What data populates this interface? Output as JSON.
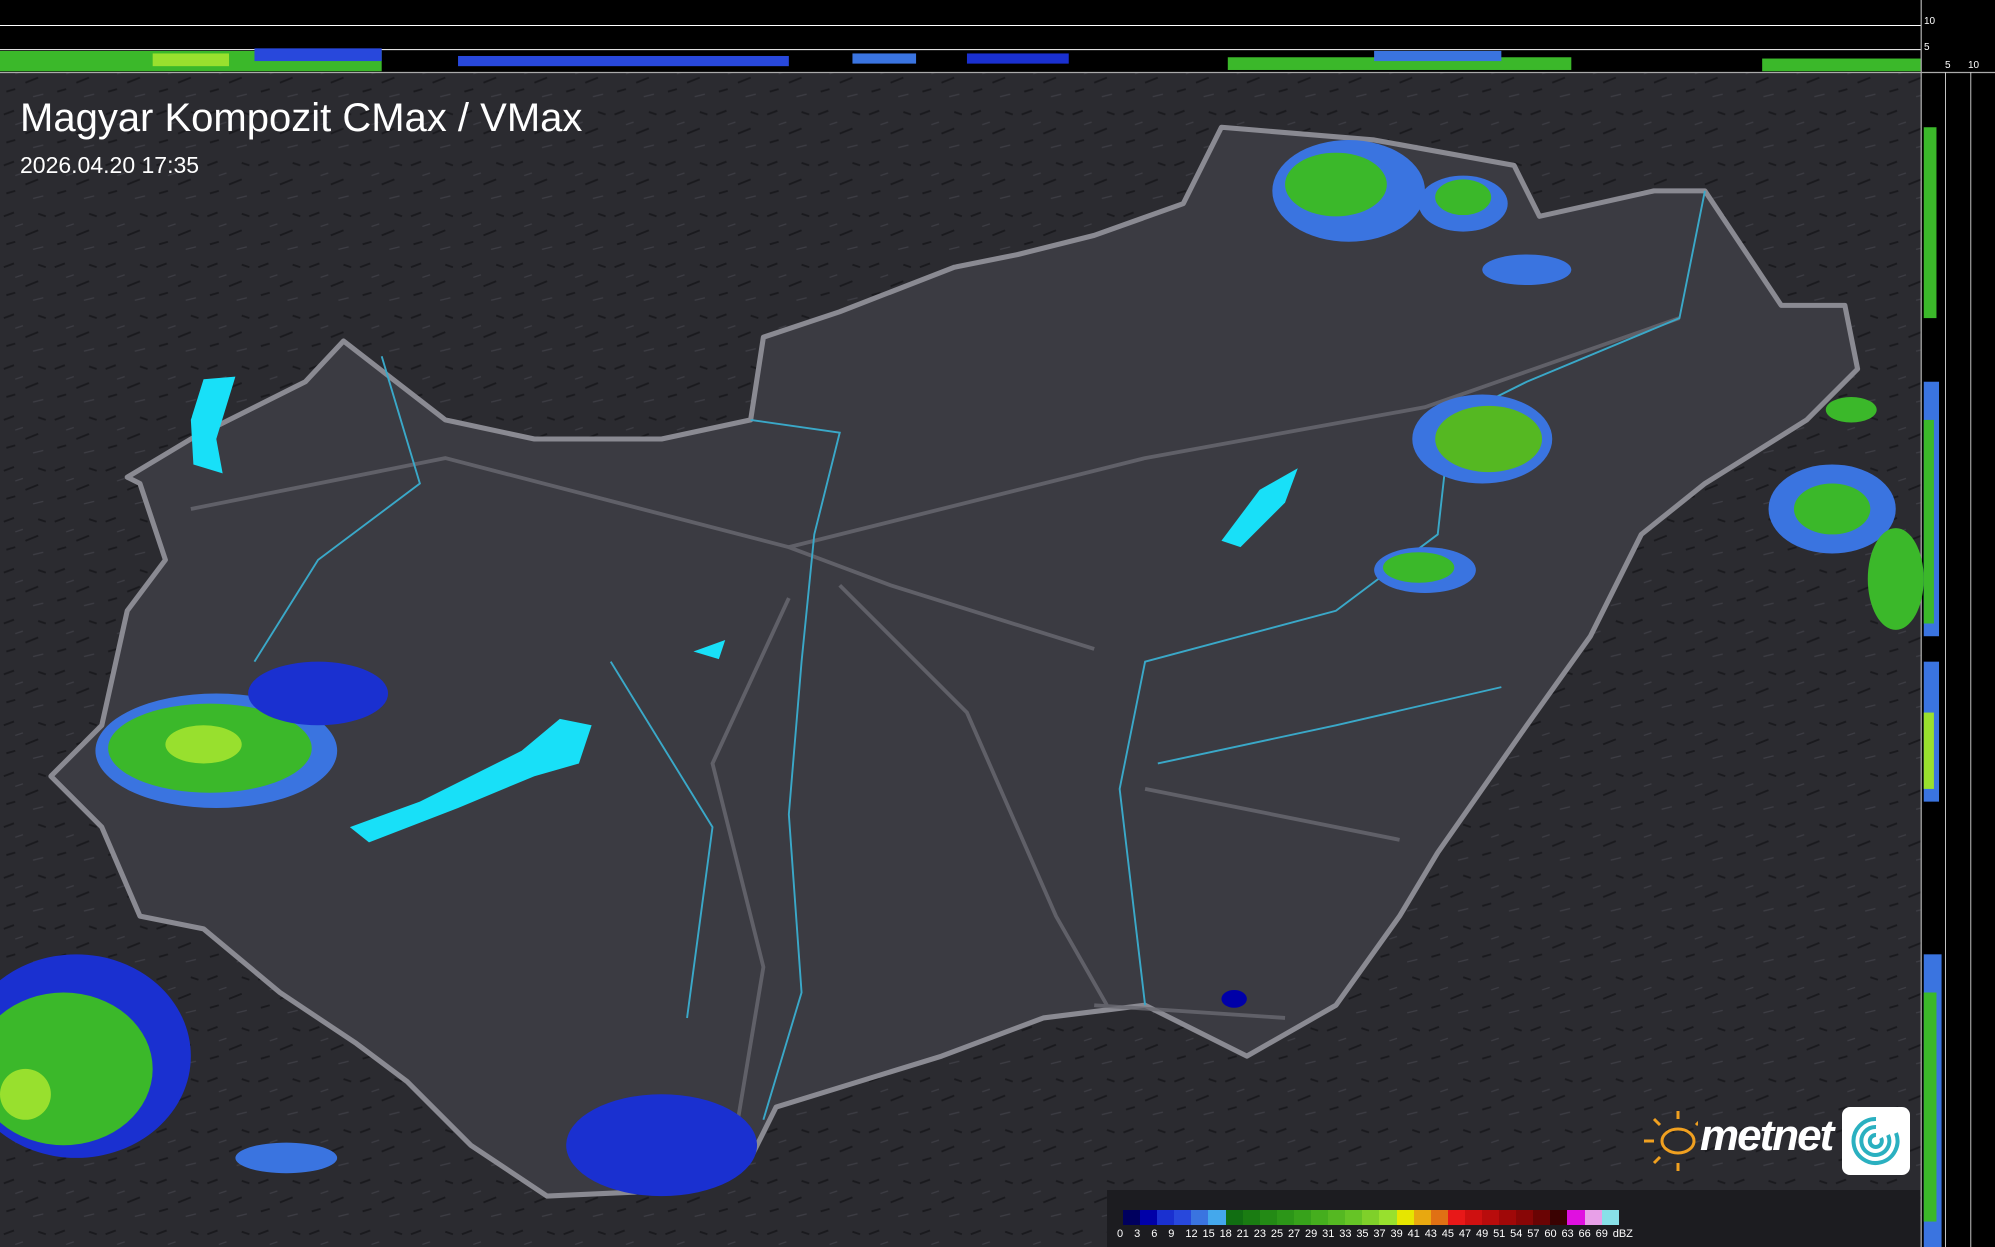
{
  "header": {
    "title": "Magyar Kompozit CMax / VMax",
    "timestamp": "2026.04.20 17:35"
  },
  "profile_axes": {
    "top_ticks": [
      "10",
      "5"
    ],
    "right_ticks": [
      "5",
      "10"
    ]
  },
  "legend": {
    "unit": "dBZ",
    "labels": [
      "0",
      "3",
      "6",
      "9",
      "12",
      "15",
      "18",
      "21",
      "23",
      "25",
      "27",
      "29",
      "31",
      "33",
      "35",
      "37",
      "39",
      "41",
      "43",
      "45",
      "47",
      "49",
      "51",
      "54",
      "57",
      "60",
      "63",
      "66",
      "69"
    ],
    "colors": [
      "#00005e",
      "#0000a8",
      "#1a30d0",
      "#2848dc",
      "#3a74e0",
      "#44a8ec",
      "#116e12",
      "#1a7c12",
      "#238a15",
      "#2c9618",
      "#37a21b",
      "#45ae1e",
      "#55b822",
      "#66c426",
      "#7fd02a",
      "#98e02e",
      "#e6e600",
      "#e8a810",
      "#e07014",
      "#e81818",
      "#cf1010",
      "#b80c0c",
      "#a00808",
      "#880606",
      "#6a0404",
      "#3a0202",
      "#e010e0",
      "#e8a0e8",
      "#88e0e8"
    ]
  },
  "logo": {
    "text": "metnet"
  },
  "colors": {
    "background": "#2b2b30",
    "country": "#3b3b42",
    "border": "#8a8a92",
    "rivers": "#3aa8c8",
    "lakes": "#18e0f8"
  }
}
